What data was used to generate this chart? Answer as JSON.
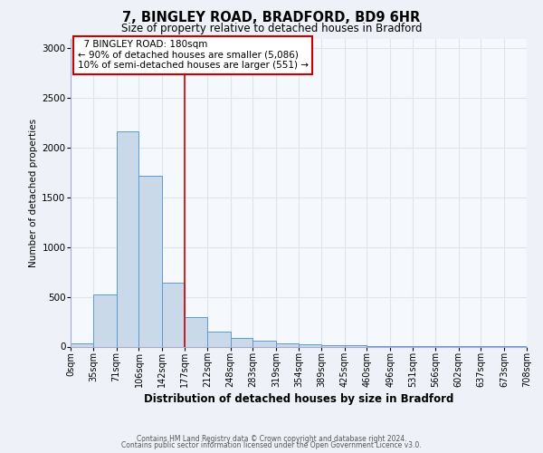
{
  "title": "7, BINGLEY ROAD, BRADFORD, BD9 6HR",
  "subtitle": "Size of property relative to detached houses in Bradford",
  "xlabel": "Distribution of detached houses by size in Bradford",
  "ylabel": "Number of detached properties",
  "footnote1": "Contains HM Land Registry data © Crown copyright and database right 2024.",
  "footnote2": "Contains public sector information licensed under the Open Government Licence v3.0.",
  "property_label": "7 BINGLEY ROAD: 180sqm",
  "annotation_line1": "← 90% of detached houses are smaller (5,086)",
  "annotation_line2": "10% of semi-detached houses are larger (551) →",
  "bar_color": "#c9d9ea",
  "bar_edge_color": "#5b9bd5",
  "vline_color": "#cc0000",
  "annotation_box_edge": "#cc0000",
  "annotation_box_bg": "#ffffff",
  "grid_color": "#dce6f1",
  "bg_color": "#eef2f8",
  "plot_bg_color": "#f5f8fd",
  "bin_edges": [
    0,
    35,
    71,
    106,
    142,
    177,
    212,
    248,
    283,
    319,
    354,
    389,
    425,
    460,
    496,
    531,
    566,
    602,
    637,
    673,
    708
  ],
  "bin_labels": [
    "0sqm",
    "35sqm",
    "71sqm",
    "106sqm",
    "142sqm",
    "177sqm",
    "212sqm",
    "248sqm",
    "283sqm",
    "319sqm",
    "354sqm",
    "389sqm",
    "425sqm",
    "460sqm",
    "496sqm",
    "531sqm",
    "566sqm",
    "602sqm",
    "637sqm",
    "673sqm",
    "708sqm"
  ],
  "counts": [
    30,
    520,
    2170,
    1720,
    640,
    295,
    150,
    90,
    55,
    35,
    20,
    15,
    10,
    8,
    5,
    3,
    2,
    2,
    1,
    1
  ],
  "ylim": [
    0,
    3100
  ],
  "yticks": [
    0,
    500,
    1000,
    1500,
    2000,
    2500,
    3000
  ],
  "vline_x": 177,
  "title_fontsize": 10.5,
  "subtitle_fontsize": 8.5,
  "xlabel_fontsize": 8.5,
  "ylabel_fontsize": 7.5,
  "tick_fontsize": 7,
  "annot_fontsize": 7.5,
  "footnote_fontsize": 5.5
}
